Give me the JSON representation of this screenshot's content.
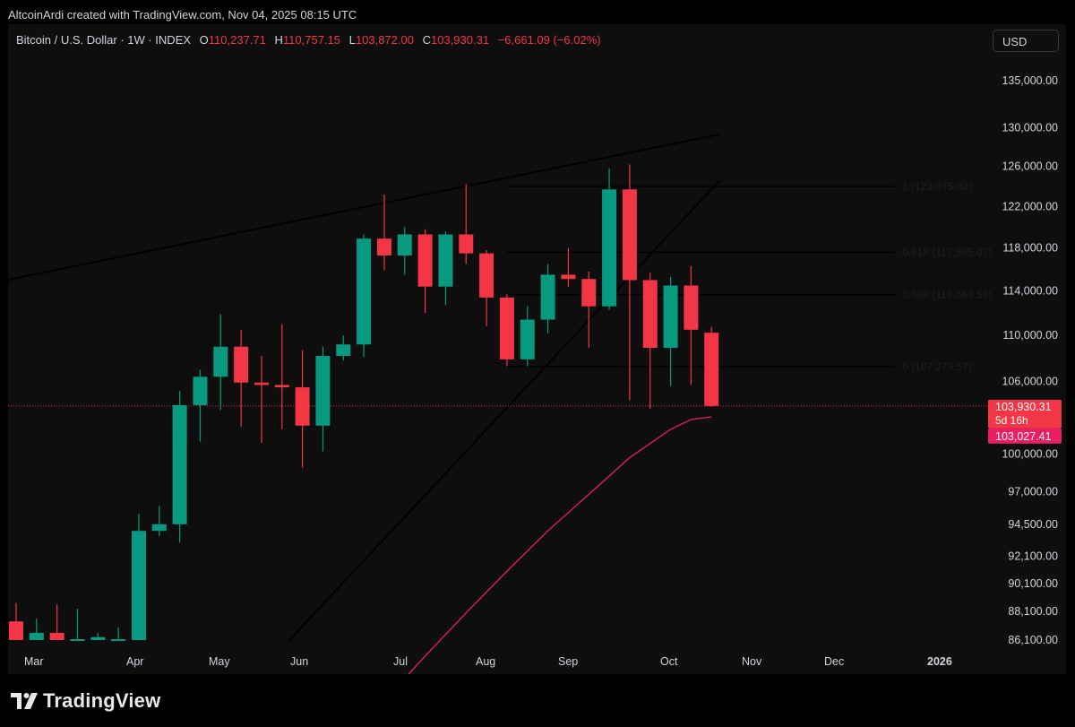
{
  "attribution": "AltcoinArdi created with TradingView.com, Nov 04, 2025 08:15 UTC",
  "symbol": {
    "name": "Bitcoin / U.S. Dollar · 1W · INDEX",
    "open_label": "O",
    "open": "110,237.71",
    "high_label": "H",
    "high": "110,757.15",
    "low_label": "L",
    "low": "103,872.00",
    "close_label": "C",
    "close": "103,930.31",
    "change": "−6,661.09 (−6.02%)"
  },
  "currency": "USD",
  "brand": "TradingView",
  "colors": {
    "up": "#089981",
    "down": "#f23645",
    "ma": "#e91e63",
    "background": "#0e0e0e",
    "text": "#d1d4dc"
  },
  "chart_data": {
    "type": "candlestick",
    "y_scale": "log",
    "y_ticks": [
      135000,
      130000,
      126000,
      122000,
      118000,
      114000,
      110000,
      106000,
      100000,
      97000,
      94500,
      92100,
      90100,
      88100,
      86100
    ],
    "x_labels": [
      "Mar",
      "Apr",
      "May",
      "Jun",
      "Jul",
      "Aug",
      "Sep",
      "Oct",
      "Nov",
      "Dec",
      "2026"
    ],
    "candles": [
      {
        "o": 87400,
        "h": 88700,
        "l": 86100,
        "c": 86100
      },
      {
        "o": 86100,
        "h": 87600,
        "l": 86100,
        "c": 86600
      },
      {
        "o": 86600,
        "h": 88600,
        "l": 86100,
        "c": 86100
      },
      {
        "o": 86100,
        "h": 88300,
        "l": 86100,
        "c": 86100
      },
      {
        "o": 86100,
        "h": 86600,
        "l": 86100,
        "c": 86300
      },
      {
        "o": 86100,
        "h": 87000,
        "l": 86100,
        "c": 86100
      },
      {
        "o": 86100,
        "h": 95300,
        "l": 86100,
        "c": 94000
      },
      {
        "o": 94000,
        "h": 95900,
        "l": 93600,
        "c": 94500
      },
      {
        "o": 94500,
        "h": 105200,
        "l": 93100,
        "c": 104000
      },
      {
        "o": 104000,
        "h": 107000,
        "l": 101000,
        "c": 106400
      },
      {
        "o": 106400,
        "h": 111900,
        "l": 103600,
        "c": 109000
      },
      {
        "o": 109000,
        "h": 110500,
        "l": 102200,
        "c": 105900
      },
      {
        "o": 105900,
        "h": 108200,
        "l": 100900,
        "c": 105700
      },
      {
        "o": 105700,
        "h": 111000,
        "l": 102000,
        "c": 105500
      },
      {
        "o": 105500,
        "h": 108700,
        "l": 98900,
        "c": 102300
      },
      {
        "o": 102300,
        "h": 109000,
        "l": 100200,
        "c": 108200
      },
      {
        "o": 108200,
        "h": 110000,
        "l": 107800,
        "c": 109200
      },
      {
        "o": 109200,
        "h": 119300,
        "l": 108100,
        "c": 118900
      },
      {
        "o": 118900,
        "h": 123200,
        "l": 115900,
        "c": 117300
      },
      {
        "o": 117300,
        "h": 120000,
        "l": 115500,
        "c": 119300
      },
      {
        "o": 119300,
        "h": 119800,
        "l": 112000,
        "c": 114400
      },
      {
        "o": 114400,
        "h": 119600,
        "l": 112700,
        "c": 119300
      },
      {
        "o": 119300,
        "h": 124200,
        "l": 116500,
        "c": 117500
      },
      {
        "o": 117500,
        "h": 117800,
        "l": 110800,
        "c": 113400
      },
      {
        "o": 113400,
        "h": 113700,
        "l": 107300,
        "c": 107900
      },
      {
        "o": 107900,
        "h": 112600,
        "l": 107300,
        "c": 111400
      },
      {
        "o": 111400,
        "h": 116500,
        "l": 110200,
        "c": 115500
      },
      {
        "o": 115500,
        "h": 118000,
        "l": 114400,
        "c": 115100
      },
      {
        "o": 115100,
        "h": 115800,
        "l": 108900,
        "c": 112600
      },
      {
        "o": 112600,
        "h": 125800,
        "l": 112300,
        "c": 123700
      },
      {
        "o": 123700,
        "h": 126200,
        "l": 104400,
        "c": 115000
      },
      {
        "o": 115000,
        "h": 115700,
        "l": 103700,
        "c": 108900
      },
      {
        "o": 108900,
        "h": 115300,
        "l": 105600,
        "c": 114500
      },
      {
        "o": 114500,
        "h": 116300,
        "l": 105700,
        "c": 110500
      },
      {
        "o": 110237.71,
        "h": 110757.15,
        "l": 103872.0,
        "c": 103930.31
      }
    ],
    "ma_series": [
      {
        "i": 18,
        "v": 82000
      },
      {
        "i": 20,
        "v": 85000
      },
      {
        "i": 22,
        "v": 88000
      },
      {
        "i": 24,
        "v": 91000
      },
      {
        "i": 26,
        "v": 94000
      },
      {
        "i": 28,
        "v": 96800
      },
      {
        "i": 30,
        "v": 99700
      },
      {
        "i": 32,
        "v": 102000
      },
      {
        "i": 33,
        "v": 102800
      },
      {
        "i": 34,
        "v": 103027.41
      }
    ],
    "fibonacci": [
      {
        "level": "1",
        "value": 123975.02,
        "label": "1 (123,975.02)"
      },
      {
        "level": "0.618",
        "value": 117595.07,
        "label": "0.618 (117,595.07)"
      },
      {
        "level": "0.382",
        "value": 113663.53,
        "label": "0.382 (113,663.53)"
      },
      {
        "level": "0",
        "value": 107273.57,
        "label": "0 (107,273.57)"
      }
    ],
    "trendlines": [
      {
        "name": "upper",
        "from": {
          "i": -1,
          "v": 114800
        },
        "to": {
          "i": 34.4,
          "v": 129300
        }
      },
      {
        "name": "support",
        "from": {
          "i": 13.3,
          "v": 86000
        },
        "to": {
          "i": 34.4,
          "v": 124600
        }
      }
    ],
    "price_tags": [
      {
        "label": "103,930.31",
        "sub": "5d 16h",
        "value": 103930.31,
        "color": "#f23645"
      },
      {
        "label": "103,027.41",
        "value": 103027.41,
        "color": "#e91e63"
      }
    ]
  }
}
